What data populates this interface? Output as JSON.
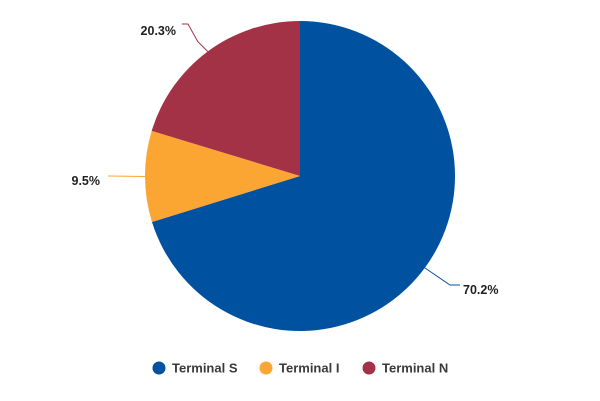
{
  "chart_data": {
    "type": "pie",
    "categories": [
      "Terminal S",
      "Terminal I",
      "Terminal N"
    ],
    "values": [
      70.2,
      9.5,
      20.3
    ],
    "data_labels": [
      "70.2%",
      "9.5%",
      "20.3%"
    ],
    "colors": [
      "#0052a0",
      "#fba533",
      "#a33246"
    ],
    "start_angle": "12 o'clock",
    "direction": "clockwise",
    "legend": {
      "position": "bottom",
      "items": [
        "Terminal S",
        "Terminal I",
        "Terminal N"
      ]
    }
  }
}
